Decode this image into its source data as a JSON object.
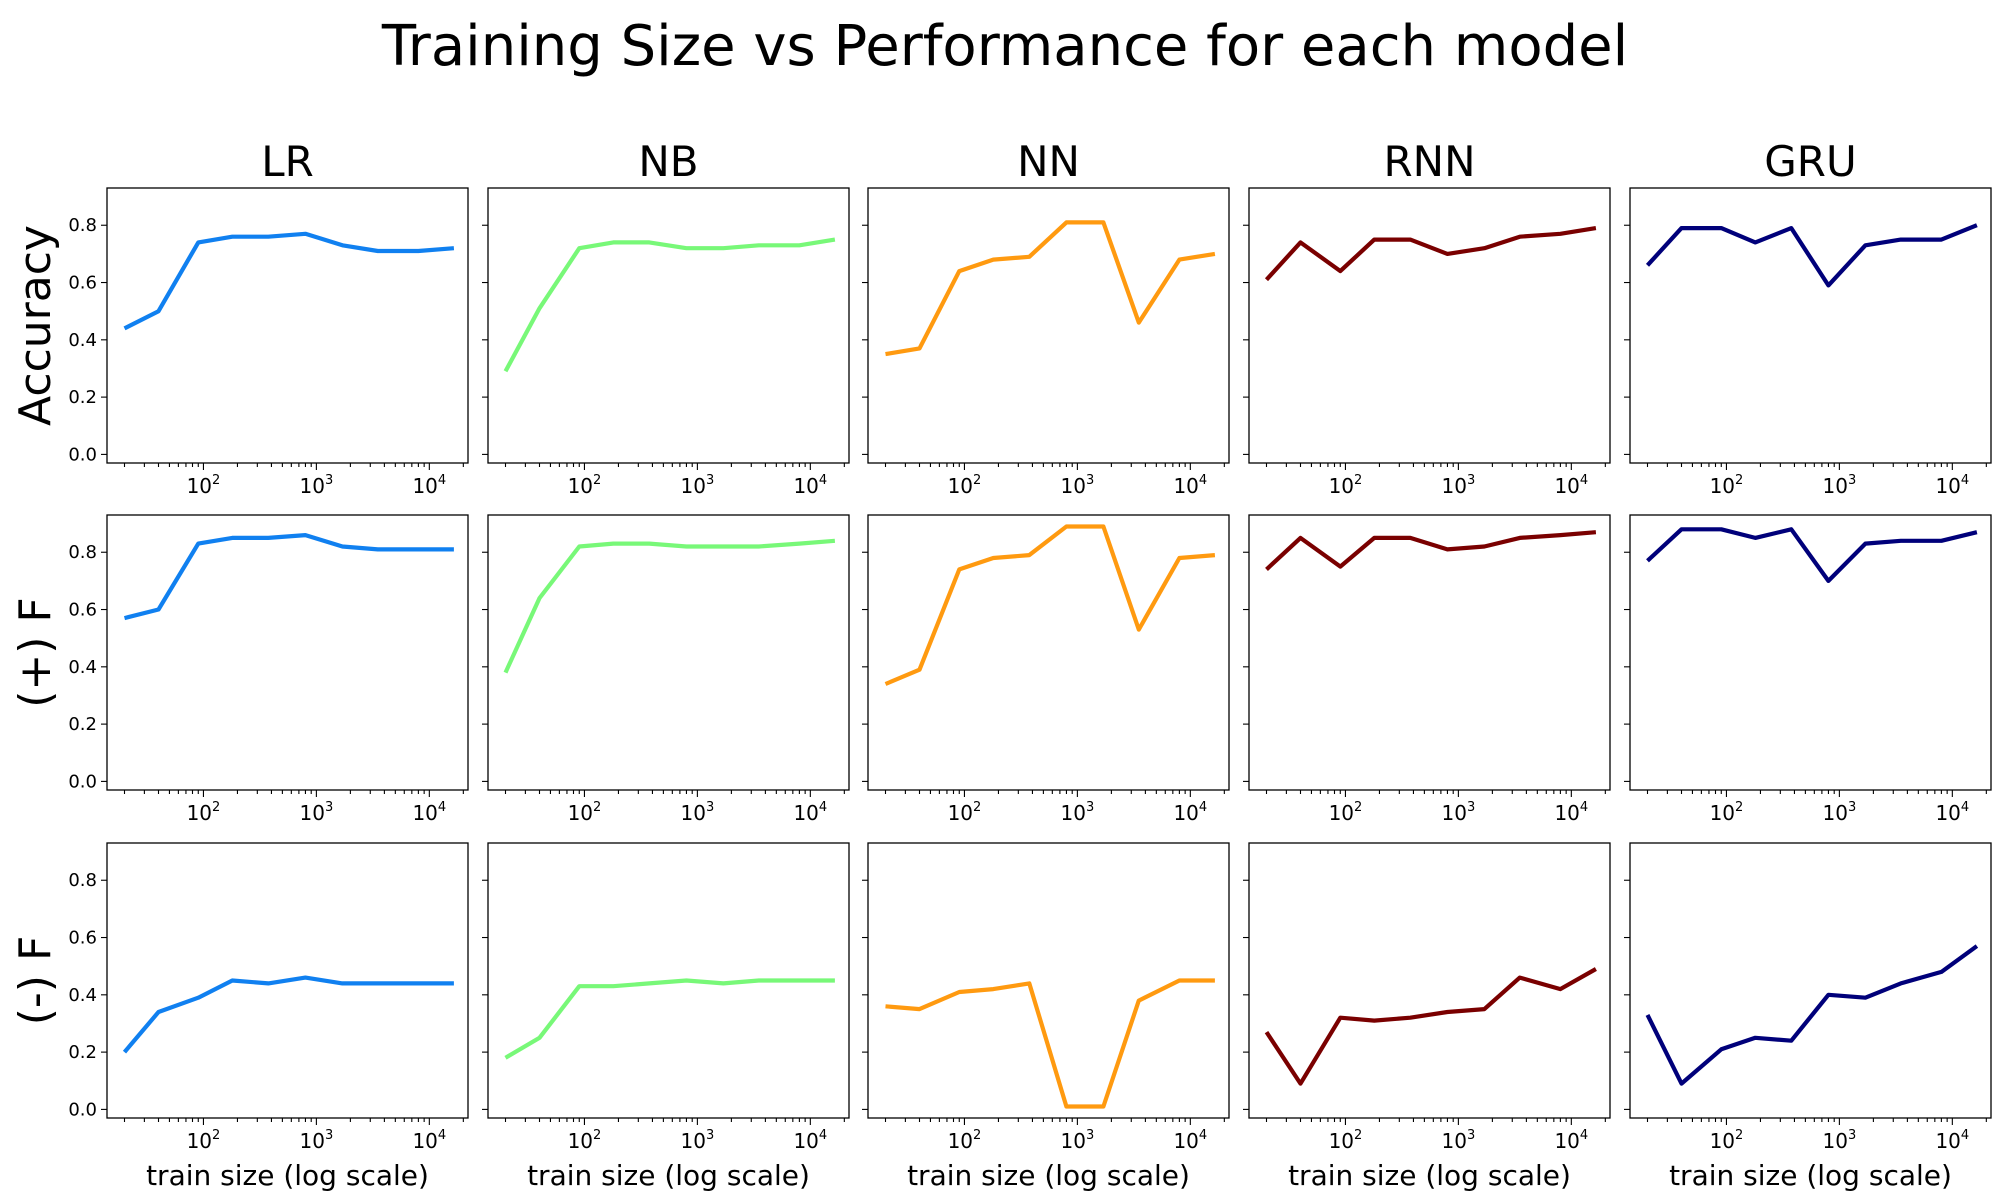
{
  "figure_title": "Training Size vs Performance for each model",
  "chart_data": {
    "type": "line",
    "title": "Training Size vs Performance for each model",
    "xscale": "log",
    "xlabel": "train size (log scale)",
    "xlim": [
      14,
      22000
    ],
    "ylim": [
      -0.03,
      0.93
    ],
    "grid": false,
    "x": [
      20,
      40,
      90,
      180,
      375,
      800,
      1700,
      3500,
      8000,
      16500
    ],
    "x_ticks": [
      {
        "value": 100,
        "base": "10",
        "exp": "2"
      },
      {
        "value": 1000,
        "base": "10",
        "exp": "3"
      },
      {
        "value": 10000,
        "base": "10",
        "exp": "4"
      }
    ],
    "y_ticks": [
      "0.0",
      "0.2",
      "0.4",
      "0.6",
      "0.8"
    ],
    "y_tick_values": [
      0,
      0.2,
      0.4,
      0.6,
      0.8
    ],
    "models": [
      {
        "name": "LR",
        "color": "#1080f0"
      },
      {
        "name": "NB",
        "color": "#78f878"
      },
      {
        "name": "NN",
        "color": "#ff9a10"
      },
      {
        "name": "RNN",
        "color": "#7a0000"
      },
      {
        "name": "GRU",
        "color": "#00007a"
      }
    ],
    "metrics": [
      {
        "name": "Accuracy",
        "series": [
          [
            0.44,
            0.5,
            0.74,
            0.76,
            0.76,
            0.77,
            0.73,
            0.71,
            0.71,
            0.72
          ],
          [
            0.29,
            0.51,
            0.72,
            0.74,
            0.74,
            0.72,
            0.72,
            0.73,
            0.73,
            0.75
          ],
          [
            0.35,
            0.37,
            0.64,
            0.68,
            0.69,
            0.81,
            0.81,
            0.46,
            0.68,
            0.7
          ],
          [
            0.61,
            0.74,
            0.64,
            0.75,
            0.75,
            0.7,
            0.72,
            0.76,
            0.77,
            0.79
          ],
          [
            0.66,
            0.79,
            0.79,
            0.74,
            0.79,
            0.59,
            0.73,
            0.75,
            0.75,
            0.8
          ]
        ]
      },
      {
        "name": "(+) F",
        "series": [
          [
            0.57,
            0.6,
            0.83,
            0.85,
            0.85,
            0.86,
            0.82,
            0.81,
            0.81,
            0.81
          ],
          [
            0.38,
            0.64,
            0.82,
            0.83,
            0.83,
            0.82,
            0.82,
            0.82,
            0.83,
            0.84
          ],
          [
            0.34,
            0.39,
            0.74,
            0.78,
            0.79,
            0.89,
            0.89,
            0.53,
            0.78,
            0.79
          ],
          [
            0.74,
            0.85,
            0.75,
            0.85,
            0.85,
            0.81,
            0.82,
            0.85,
            0.86,
            0.87
          ],
          [
            0.77,
            0.88,
            0.88,
            0.85,
            0.88,
            0.7,
            0.83,
            0.84,
            0.84,
            0.87
          ]
        ]
      },
      {
        "name": "(-) F",
        "series": [
          [
            0.2,
            0.34,
            0.39,
            0.45,
            0.44,
            0.46,
            0.44,
            0.44,
            0.44,
            0.44
          ],
          [
            0.18,
            0.25,
            0.43,
            0.43,
            0.44,
            0.45,
            0.44,
            0.45,
            0.45,
            0.45
          ],
          [
            0.36,
            0.35,
            0.41,
            0.42,
            0.44,
            0.01,
            0.01,
            0.38,
            0.45,
            0.45
          ],
          [
            0.27,
            0.09,
            0.32,
            0.31,
            0.32,
            0.34,
            0.35,
            0.46,
            0.42,
            0.49
          ],
          [
            0.33,
            0.09,
            0.21,
            0.25,
            0.24,
            0.4,
            0.39,
            0.44,
            0.48,
            0.57
          ]
        ]
      }
    ]
  }
}
